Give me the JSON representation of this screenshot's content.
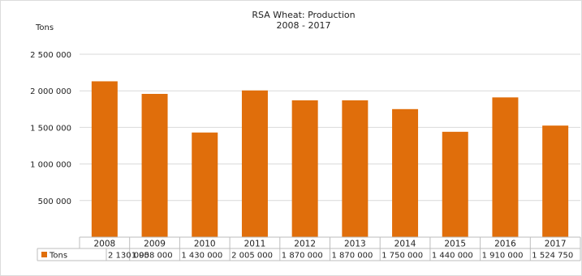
{
  "chart_data": {
    "type": "bar",
    "title": "RSA Wheat: Production",
    "subtitle": "2008 - 2017",
    "ylabel": "Tons",
    "categories": [
      "2008",
      "2009",
      "2010",
      "2011",
      "2012",
      "2013",
      "2014",
      "2015",
      "2016",
      "2017"
    ],
    "series": [
      {
        "name": "Tons",
        "values": [
          2130000,
          1958000,
          1430000,
          2005000,
          1870000,
          1870000,
          1750000,
          1440000,
          1910000,
          1524750
        ],
        "labels": [
          "2 130 000",
          "1 958 000",
          "1 430 000",
          "2 005 000",
          "1 870 000",
          "1 870 000",
          "1 750 000",
          "1 440 000",
          "1 910 000",
          "1 524 750"
        ]
      }
    ],
    "ylim": [
      0,
      2500000
    ],
    "yticks": [
      500000,
      1000000,
      1500000,
      2000000,
      2500000
    ],
    "ytick_labels": [
      "500 000",
      "1 000 000",
      "1 500 000",
      "2 000 000",
      "2 500 000"
    ],
    "grid": true,
    "legend": "data-table",
    "colors": {
      "bar": "#e06e0b",
      "grid": "#d9d9d9"
    }
  }
}
